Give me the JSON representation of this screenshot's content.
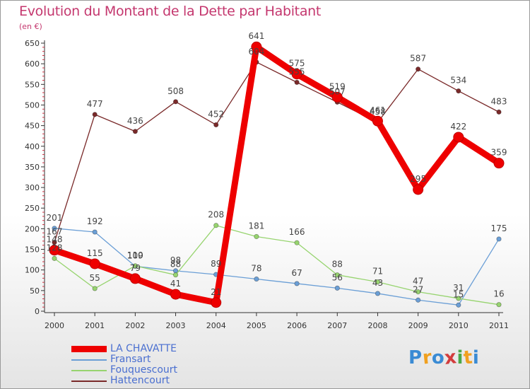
{
  "title": "Evolution du Montant de la Dette par Habitant",
  "subtitle": "(en €)",
  "logo": {
    "text": "Proxiti",
    "letters": [
      "P",
      "r",
      "o",
      "x",
      "i",
      "t",
      "i"
    ],
    "colors": [
      "#3a8bd4",
      "#f0a020",
      "#3a8bd4",
      "#d23c3c",
      "#49a849",
      "#f0a020",
      "#3a8bd4"
    ]
  },
  "chart_data": {
    "type": "line",
    "x": [
      "2000",
      "2001",
      "2002",
      "2003",
      "2004",
      "2005",
      "2006",
      "2007",
      "2008",
      "2009",
      "2010",
      "2011"
    ],
    "ylim": [
      0,
      650
    ],
    "yticks": [
      0,
      50,
      100,
      150,
      200,
      250,
      300,
      350,
      400,
      450,
      500,
      550,
      600,
      650
    ],
    "grid": false,
    "series": [
      {
        "name": "LA CHAVATTE",
        "color": "#ee0000",
        "values": [
          148,
          115,
          79,
          41,
          21,
          641,
          575,
          519,
          461,
          295,
          422,
          359
        ]
      },
      {
        "name": "Fransart",
        "color": "#6b9fd6",
        "values": [
          201,
          192,
          109,
          98,
          89,
          78,
          67,
          56,
          43,
          27,
          15,
          175
        ]
      },
      {
        "name": "Fouquescourt",
        "color": "#97d46f",
        "values": [
          128,
          55,
          110,
          88,
          208,
          181,
          166,
          88,
          71,
          47,
          31,
          16
        ]
      },
      {
        "name": "Hattencourt",
        "color": "#7a2a2a",
        "values": [
          167,
          477,
          436,
          508,
          452,
          604,
          555,
          507,
          458,
          587,
          534,
          483
        ]
      }
    ]
  }
}
